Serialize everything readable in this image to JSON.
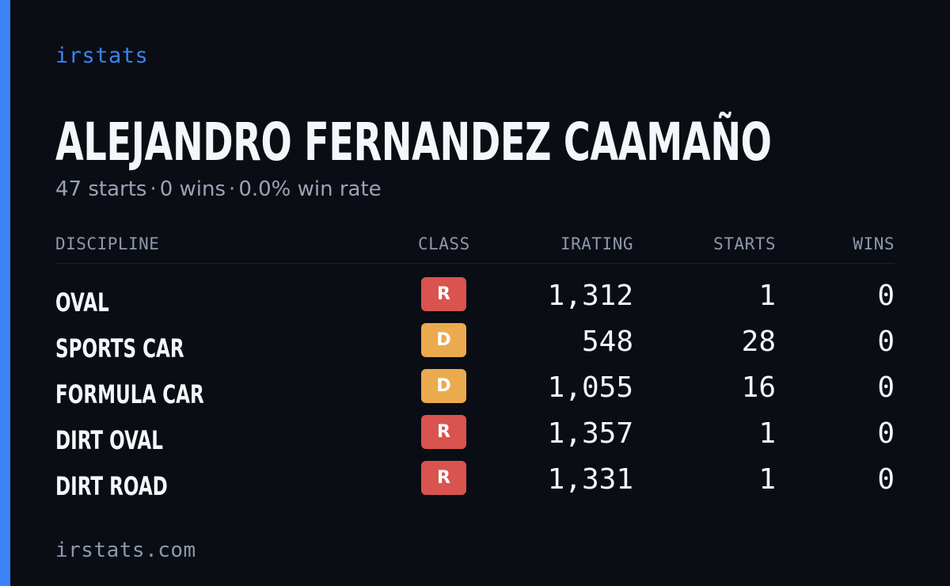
{
  "brand": "irstats",
  "driver": {
    "name": "ALEJANDRO FERNANDEZ CAAMAÑO"
  },
  "summary": {
    "starts": "47 starts",
    "wins": "0 wins",
    "win_rate": "0.0% win rate",
    "separator": "·"
  },
  "table": {
    "headers": {
      "discipline": "DISCIPLINE",
      "class": "CLASS",
      "irating": "IRATING",
      "starts": "STARTS",
      "wins": "WINS"
    },
    "rows": [
      {
        "discipline": "OVAL",
        "class": "R",
        "irating": "1,312",
        "starts": "1",
        "wins": "0"
      },
      {
        "discipline": "SPORTS CAR",
        "class": "D",
        "irating": "548",
        "starts": "28",
        "wins": "0"
      },
      {
        "discipline": "FORMULA CAR",
        "class": "D",
        "irating": "1,055",
        "starts": "16",
        "wins": "0"
      },
      {
        "discipline": "DIRT OVAL",
        "class": "R",
        "irating": "1,357",
        "starts": "1",
        "wins": "0"
      },
      {
        "discipline": "DIRT ROAD",
        "class": "R",
        "irating": "1,331",
        "starts": "1",
        "wins": "0"
      }
    ]
  },
  "class_colors": {
    "R": "#d9534f",
    "D": "#ecaa4f"
  },
  "colors": {
    "background": "#0a0d14",
    "accent": "#3b82f6",
    "text": "#f4f6fa",
    "muted": "#9aa3b5"
  },
  "footer": "irstats.com"
}
